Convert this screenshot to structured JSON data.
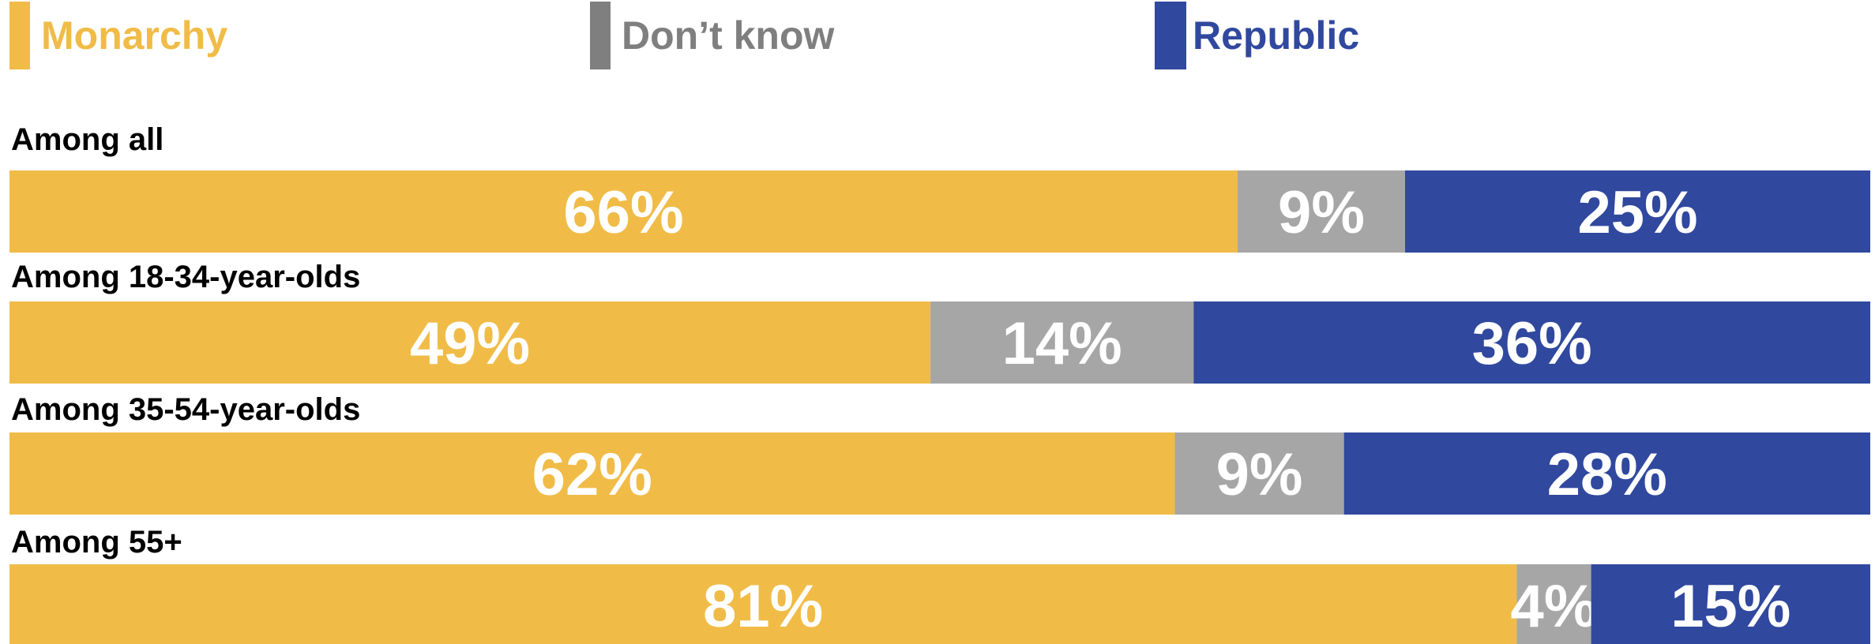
{
  "chart_data": {
    "type": "bar",
    "orientation": "horizontal",
    "stacked": true,
    "normalized": true,
    "categories": [
      "Among all",
      "Among 18-34-year-olds",
      "Among 35-54-year-olds",
      "Among 55+"
    ],
    "series": [
      {
        "name": "Monarchy",
        "color": "#F0BC47",
        "values": [
          66,
          49,
          62,
          81
        ],
        "labels": [
          "66%",
          "49%",
          "62%",
          "81%"
        ]
      },
      {
        "name": "Don’t know",
        "color": "#A6A6A6",
        "legend_color": "#7F7F7F",
        "values": [
          9,
          14,
          9,
          4
        ],
        "labels": [
          "9%",
          "14%",
          "9%",
          "4%"
        ]
      },
      {
        "name": "Republic",
        "color": "#30489E",
        "values": [
          25,
          36,
          28,
          15
        ],
        "labels": [
          "25%",
          "36%",
          "28%",
          "15%"
        ]
      }
    ],
    "legend_position": "top",
    "grid": false
  }
}
